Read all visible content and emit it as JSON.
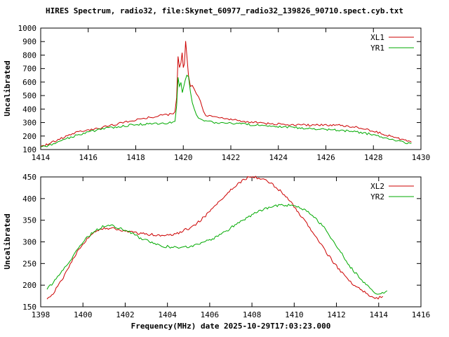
{
  "page": {
    "title": "HIRES Spectrum, radio32, file:Skynet_60977_radio32_139826_90710.spect.cyb.txt",
    "xlabel": "Frequency(MHz) date 2025-10-29T17:03:23.000"
  },
  "colors": {
    "axis": "#000000",
    "background": "#ffffff",
    "red": "#cc0000",
    "green": "#00aa00"
  },
  "chart_data": [
    {
      "type": "line",
      "ylabel": "Uncalibrated",
      "xlim": [
        1414,
        1430
      ],
      "ylim": [
        100,
        1000
      ],
      "xticks": [
        1414,
        1416,
        1418,
        1420,
        1422,
        1424,
        1426,
        1428,
        1430
      ],
      "yticks": [
        100,
        200,
        300,
        400,
        500,
        600,
        700,
        800,
        900,
        1000
      ],
      "grid": false,
      "legend_position": "top-right",
      "series": [
        {
          "name": "XL1",
          "color": "#cc0000",
          "noise": 8,
          "points": [
            [
              1414.0,
              122
            ],
            [
              1414.3,
              140
            ],
            [
              1414.6,
              162
            ],
            [
              1415.0,
              195
            ],
            [
              1415.4,
              220
            ],
            [
              1415.8,
              240
            ],
            [
              1416.2,
              252
            ],
            [
              1416.6,
              265
            ],
            [
              1417.0,
              280
            ],
            [
              1417.4,
              297
            ],
            [
              1417.8,
              312
            ],
            [
              1418.2,
              325
            ],
            [
              1418.6,
              338
            ],
            [
              1419.0,
              350
            ],
            [
              1419.3,
              358
            ],
            [
              1419.5,
              365
            ],
            [
              1419.65,
              375
            ],
            [
              1419.72,
              480
            ],
            [
              1419.78,
              790
            ],
            [
              1419.84,
              700
            ],
            [
              1419.9,
              745
            ],
            [
              1419.95,
              810
            ],
            [
              1420.0,
              700
            ],
            [
              1420.05,
              745
            ],
            [
              1420.1,
              910
            ],
            [
              1420.16,
              770
            ],
            [
              1420.22,
              640
            ],
            [
              1420.3,
              565
            ],
            [
              1420.38,
              575
            ],
            [
              1420.46,
              545
            ],
            [
              1420.55,
              520
            ],
            [
              1420.64,
              495
            ],
            [
              1420.72,
              465
            ],
            [
              1420.78,
              420
            ],
            [
              1420.85,
              380
            ],
            [
              1420.95,
              358
            ],
            [
              1421.1,
              348
            ],
            [
              1421.5,
              335
            ],
            [
              1422.0,
              322
            ],
            [
              1422.5,
              310
            ],
            [
              1423.0,
              300
            ],
            [
              1423.5,
              293
            ],
            [
              1424.0,
              288
            ],
            [
              1424.5,
              283
            ],
            [
              1425.0,
              281
            ],
            [
              1425.5,
              280
            ],
            [
              1426.0,
              281
            ],
            [
              1426.5,
              280
            ],
            [
              1427.0,
              273
            ],
            [
              1427.4,
              262
            ],
            [
              1427.8,
              245
            ],
            [
              1428.2,
              226
            ],
            [
              1428.6,
              205
            ],
            [
              1429.0,
              185
            ],
            [
              1429.3,
              168
            ],
            [
              1429.6,
              155
            ]
          ]
        },
        {
          "name": "YR1",
          "color": "#00aa00",
          "noise": 8,
          "points": [
            [
              1414.0,
              112
            ],
            [
              1414.4,
              135
            ],
            [
              1414.8,
              162
            ],
            [
              1415.2,
              188
            ],
            [
              1415.6,
              210
            ],
            [
              1416.0,
              228
            ],
            [
              1416.4,
              245
            ],
            [
              1416.8,
              258
            ],
            [
              1417.2,
              268
            ],
            [
              1417.6,
              277
            ],
            [
              1418.0,
              284
            ],
            [
              1418.4,
              289
            ],
            [
              1418.8,
              293
            ],
            [
              1419.2,
              296
            ],
            [
              1419.5,
              299
            ],
            [
              1419.65,
              305
            ],
            [
              1419.72,
              420
            ],
            [
              1419.78,
              635
            ],
            [
              1419.84,
              560
            ],
            [
              1419.9,
              600
            ],
            [
              1419.96,
              520
            ],
            [
              1420.02,
              560
            ],
            [
              1420.08,
              615
            ],
            [
              1420.15,
              655
            ],
            [
              1420.22,
              640
            ],
            [
              1420.3,
              520
            ],
            [
              1420.38,
              450
            ],
            [
              1420.46,
              400
            ],
            [
              1420.55,
              362
            ],
            [
              1420.64,
              335
            ],
            [
              1420.72,
              320
            ],
            [
              1420.82,
              311
            ],
            [
              1421.0,
              305
            ],
            [
              1421.5,
              300
            ],
            [
              1422.0,
              294
            ],
            [
              1422.5,
              289
            ],
            [
              1423.0,
              283
            ],
            [
              1423.5,
              277
            ],
            [
              1424.0,
              271
            ],
            [
              1424.5,
              265
            ],
            [
              1425.0,
              259
            ],
            [
              1425.5,
              254
            ],
            [
              1426.0,
              249
            ],
            [
              1426.5,
              243
            ],
            [
              1427.0,
              236
            ],
            [
              1427.4,
              228
            ],
            [
              1427.8,
              216
            ],
            [
              1428.2,
              200
            ],
            [
              1428.6,
              182
            ],
            [
              1429.0,
              165
            ],
            [
              1429.3,
              152
            ],
            [
              1429.6,
              145
            ]
          ]
        }
      ]
    },
    {
      "type": "line",
      "ylabel": "Uncalibrated",
      "xlim": [
        1398,
        1416
      ],
      "ylim": [
        150,
        450
      ],
      "xticks": [
        1398,
        1400,
        1402,
        1404,
        1406,
        1408,
        1410,
        1412,
        1414,
        1416
      ],
      "yticks": [
        150,
        200,
        250,
        300,
        350,
        400,
        450
      ],
      "grid": false,
      "legend_position": "top-right",
      "series": [
        {
          "name": "XL2",
          "color": "#cc0000",
          "noise": 3,
          "points": [
            [
              1398.3,
              165
            ],
            [
              1398.6,
              182
            ],
            [
              1399.0,
              212
            ],
            [
              1399.4,
              248
            ],
            [
              1399.8,
              282
            ],
            [
              1400.2,
              308
            ],
            [
              1400.6,
              324
            ],
            [
              1401.0,
              331
            ],
            [
              1401.4,
              332
            ],
            [
              1401.8,
              328
            ],
            [
              1402.2,
              324
            ],
            [
              1402.6,
              320
            ],
            [
              1403.0,
              318
            ],
            [
              1403.4,
              316
            ],
            [
              1403.8,
              315
            ],
            [
              1404.2,
              317
            ],
            [
              1404.6,
              322
            ],
            [
              1405.0,
              331
            ],
            [
              1405.4,
              343
            ],
            [
              1405.8,
              360
            ],
            [
              1406.2,
              380
            ],
            [
              1406.6,
              400
            ],
            [
              1407.0,
              420
            ],
            [
              1407.4,
              437
            ],
            [
              1407.8,
              448
            ],
            [
              1408.1,
              450
            ],
            [
              1408.4,
              447
            ],
            [
              1408.8,
              438
            ],
            [
              1409.2,
              424
            ],
            [
              1409.6,
              406
            ],
            [
              1410.0,
              382
            ],
            [
              1410.4,
              355
            ],
            [
              1410.8,
              327
            ],
            [
              1411.2,
              298
            ],
            [
              1411.6,
              270
            ],
            [
              1412.0,
              244
            ],
            [
              1412.4,
              220
            ],
            [
              1412.8,
              202
            ],
            [
              1413.2,
              188
            ],
            [
              1413.6,
              176
            ],
            [
              1413.9,
              169
            ],
            [
              1414.2,
              174
            ]
          ]
        },
        {
          "name": "YR2",
          "color": "#00aa00",
          "noise": 3,
          "points": [
            [
              1398.3,
              193
            ],
            [
              1398.6,
              206
            ],
            [
              1399.0,
              230
            ],
            [
              1399.4,
              258
            ],
            [
              1399.8,
              286
            ],
            [
              1400.2,
              310
            ],
            [
              1400.6,
              327
            ],
            [
              1401.0,
              336
            ],
            [
              1401.4,
              337
            ],
            [
              1401.8,
              331
            ],
            [
              1402.2,
              322
            ],
            [
              1402.6,
              312
            ],
            [
              1403.0,
              303
            ],
            [
              1403.4,
              295
            ],
            [
              1403.8,
              290
            ],
            [
              1404.2,
              288
            ],
            [
              1404.6,
              287
            ],
            [
              1405.0,
              289
            ],
            [
              1405.4,
              293
            ],
            [
              1405.8,
              300
            ],
            [
              1406.2,
              309
            ],
            [
              1406.6,
              320
            ],
            [
              1407.0,
              332
            ],
            [
              1407.4,
              345
            ],
            [
              1407.8,
              357
            ],
            [
              1408.2,
              368
            ],
            [
              1408.6,
              376
            ],
            [
              1409.0,
              382
            ],
            [
              1409.4,
              385
            ],
            [
              1409.8,
              384
            ],
            [
              1410.2,
              380
            ],
            [
              1410.6,
              371
            ],
            [
              1411.0,
              355
            ],
            [
              1411.4,
              333
            ],
            [
              1411.8,
              306
            ],
            [
              1412.2,
              276
            ],
            [
              1412.6,
              246
            ],
            [
              1413.0,
              222
            ],
            [
              1413.4,
              201
            ],
            [
              1413.8,
              184
            ],
            [
              1414.1,
              180
            ],
            [
              1414.4,
              187
            ]
          ]
        }
      ]
    }
  ]
}
